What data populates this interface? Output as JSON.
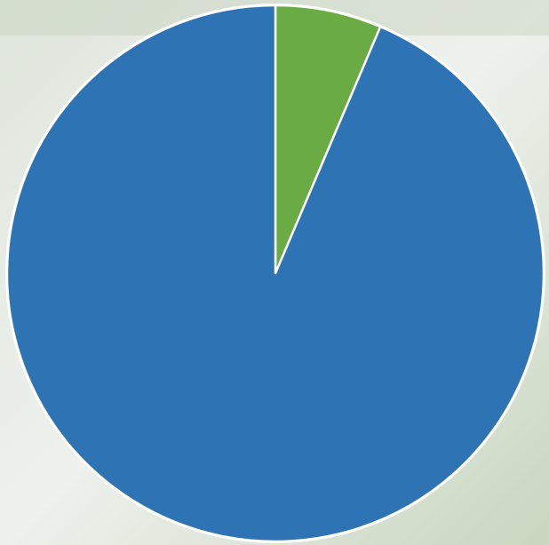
{
  "chart_data": {
    "type": "pie",
    "values": [
      6.4,
      93.6
    ],
    "colors": [
      "#6aab43",
      "#2e74b5"
    ],
    "start_angle": 0,
    "direction": "clockwise"
  }
}
